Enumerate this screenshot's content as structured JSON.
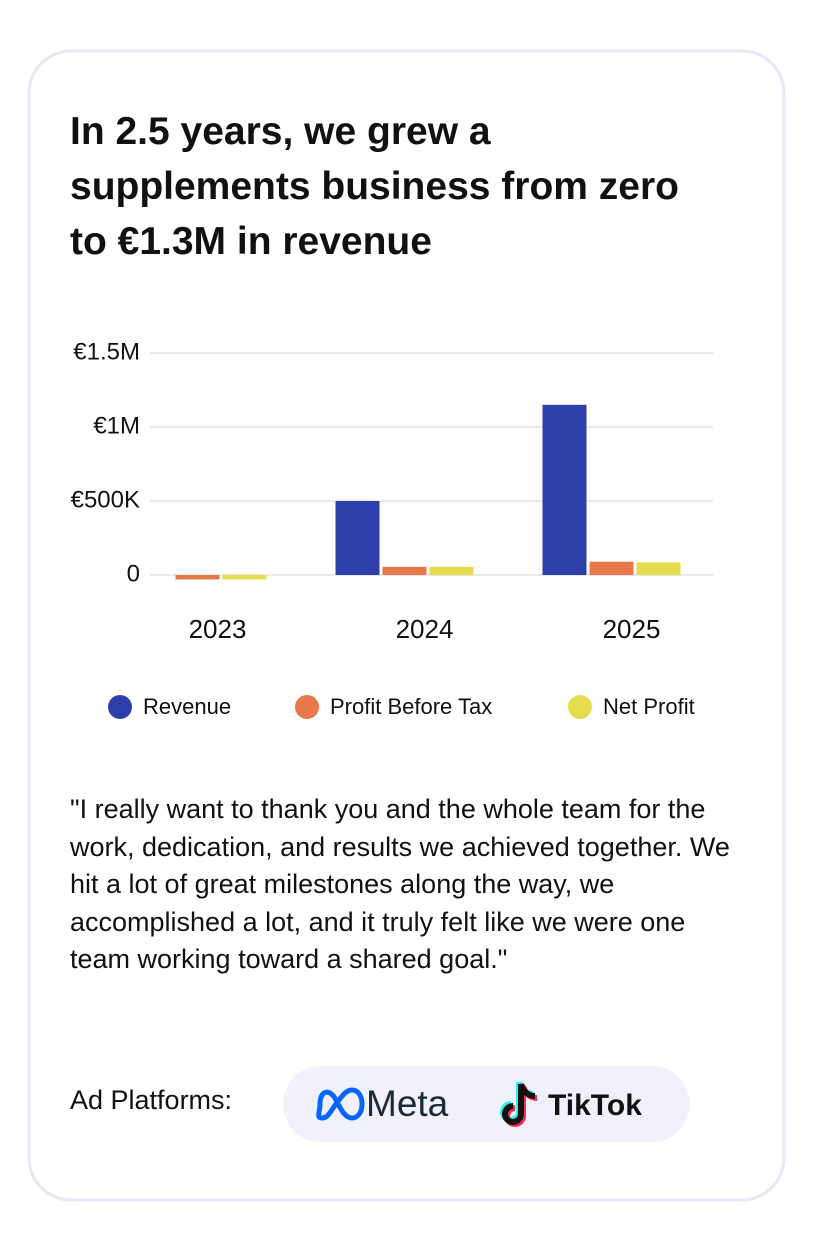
{
  "chart_data": {
    "type": "bar",
    "title": "In 2.5 years, we grew a supplements business from zero to €1.3M in revenue",
    "categories": [
      "2023",
      "2024",
      "2025"
    ],
    "series": [
      {
        "name": "Revenue",
        "color": "#2f3fa9",
        "values": [
          0,
          500000,
          1150000
        ]
      },
      {
        "name": "Profit Before Tax",
        "color": "#e8774c",
        "values": [
          -30000,
          55000,
          90000
        ]
      },
      {
        "name": "Net Profit",
        "color": "#e3dc4c",
        "values": [
          -30000,
          55000,
          85000
        ]
      }
    ],
    "ylim": [
      -60000,
      1500000
    ],
    "yticks": [
      0,
      {
        "value": 500000,
        "label": "€500K"
      },
      {
        "value": 1000000,
        "label": "€1M"
      },
      {
        "value": 1500000,
        "label": "€1.5M"
      }
    ],
    "grid": true
  },
  "testimonial": {
    "quote": "\"I really want to thank you and the whole team for the work, dedication, and results we achieved together. We hit a lot of great milestones along the way, we accomplished a lot, and it truly felt like we were one team working toward a shared goal.\""
  },
  "platforms": {
    "label": "Ad Platforms:",
    "logos": [
      "Meta",
      "TikTok"
    ]
  }
}
